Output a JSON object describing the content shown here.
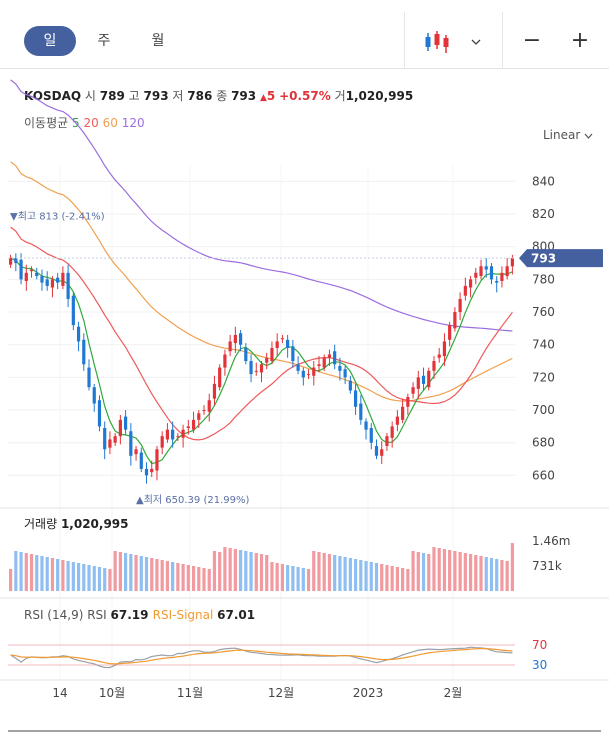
{
  "tabs": [
    {
      "label": "일",
      "active": true
    },
    {
      "label": "주",
      "active": false
    },
    {
      "label": "월",
      "active": false
    }
  ],
  "controls": {
    "chart_type_icon": "candlestick-icon",
    "dropdown_icon": "chevron-down-icon",
    "zoom_out_label": "−",
    "zoom_in_label": "+"
  },
  "info": {
    "name": "KOSDAQ",
    "open_label": "시",
    "open": "789",
    "high_label": "고",
    "high": "793",
    "low_label": "저",
    "low": "786",
    "close_label": "종",
    "close": "793",
    "change_arrow": "▲",
    "change": "5",
    "change_pct": "+0.57%",
    "volume_label": "거",
    "volume": "1,020,995"
  },
  "ma": {
    "label": "이동평균",
    "periods": [
      {
        "value": "5",
        "color": "#2eaa3a"
      },
      {
        "value": "20",
        "color": "#f0595b"
      },
      {
        "value": "60",
        "color": "#f0a050"
      },
      {
        "value": "120",
        "color": "#9b6ee0"
      }
    ]
  },
  "scale_label": "Linear",
  "colors": {
    "up": "#e2333a",
    "down": "#1f78d1",
    "up_vol": "#f19aa0",
    "down_vol": "#8fbef0",
    "rsi": "#9aa0a8",
    "signal": "#f29a30",
    "badge": "#45609f"
  },
  "chart_data": {
    "type": "candlestick",
    "y_ticks": [
      660,
      680,
      700,
      720,
      740,
      760,
      780,
      800,
      820,
      840
    ],
    "ylim": [
      648,
      850
    ],
    "x_labels": [
      "14",
      "10월",
      "11월",
      "12월",
      "2023",
      "2월"
    ],
    "last_price": "793",
    "high_annotation": "▼최고 813 (-2.41%)",
    "low_annotation": "▲최저 650.39 (21.99%)",
    "high_value": 813,
    "low_value": 650.39,
    "close": [
      793,
      790,
      780,
      784,
      786,
      782,
      778,
      776,
      780,
      778,
      784,
      768,
      752,
      742,
      728,
      714,
      704,
      690,
      676,
      682,
      684,
      694,
      688,
      672,
      676,
      664,
      660,
      664,
      676,
      684,
      688,
      682,
      684,
      688,
      690,
      694,
      698,
      700,
      706,
      716,
      726,
      734,
      742,
      746,
      740,
      730,
      722,
      724,
      728,
      732,
      738,
      742,
      744,
      738,
      730,
      724,
      720,
      722,
      726,
      728,
      732,
      734,
      728,
      724,
      720,
      712,
      702,
      694,
      688,
      680,
      672,
      676,
      684,
      690,
      696,
      702,
      708,
      714,
      720,
      716,
      724,
      730,
      734,
      742,
      752,
      760,
      768,
      776,
      780,
      784,
      788,
      786,
      780,
      778,
      784,
      788,
      793
    ],
    "volume": {
      "label": "거래량",
      "value": "1,020,995",
      "ticks": [
        "1.46m",
        "731k"
      ]
    },
    "rsi": {
      "label": "RSI (14,9)",
      "rsi_label": "RSI",
      "rsi_value": "67.19",
      "signal_label": "RSI-Signal",
      "signal_value": "67.01",
      "levels": [
        70,
        30
      ]
    }
  }
}
